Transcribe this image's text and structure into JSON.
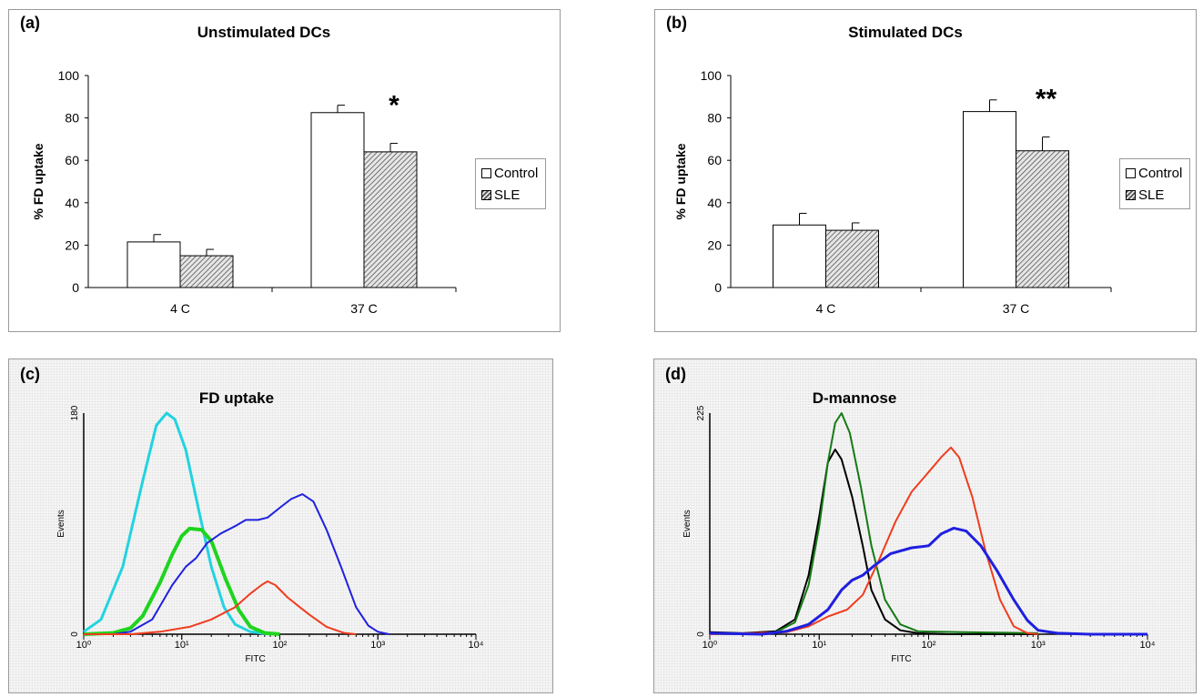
{
  "panels": {
    "a": {
      "letter": "(a)",
      "title": "Unstimulated DCs"
    },
    "b": {
      "letter": "(b)",
      "title": "Stimulated DCs"
    },
    "c": {
      "letter": "(c)",
      "title": "FD uptake"
    },
    "d": {
      "letter": "(d)",
      "title": "D-mannose"
    }
  },
  "legend": {
    "control": "Control",
    "sle": "SLE"
  },
  "chart_data": [
    {
      "type": "bar",
      "title": "Unstimulated DCs",
      "ylabel": "% FD uptake",
      "xlabel": "",
      "categories": [
        "4 C",
        "37 C"
      ],
      "series": [
        {
          "name": "Control",
          "values": [
            21.5,
            82.5
          ],
          "errors": [
            3.5,
            3.5
          ]
        },
        {
          "name": "SLE",
          "values": [
            15,
            64
          ],
          "errors": [
            3,
            4
          ]
        }
      ],
      "ylim": [
        0,
        100
      ],
      "yticks": [
        0,
        20,
        40,
        60,
        80,
        100
      ],
      "annotations": [
        {
          "category": "37 C",
          "text": "*"
        }
      ],
      "colors": {
        "control": "#ffffff",
        "sle_hatch": "#555555"
      },
      "legend_position": "right"
    },
    {
      "type": "bar",
      "title": "Stimulated DCs",
      "ylabel": "% FD uptake",
      "xlabel": "",
      "categories": [
        "4 C",
        "37 C"
      ],
      "series": [
        {
          "name": "Control",
          "values": [
            29.5,
            83
          ],
          "errors": [
            5.5,
            5.5
          ]
        },
        {
          "name": "SLE",
          "values": [
            27,
            64.5
          ],
          "errors": [
            3.5,
            6.5
          ]
        }
      ],
      "ylim": [
        0,
        100
      ],
      "yticks": [
        0,
        20,
        40,
        60,
        80,
        100
      ],
      "annotations": [
        {
          "category": "37 C",
          "text": "**"
        }
      ],
      "colors": {
        "control": "#ffffff",
        "sle_hatch": "#555555"
      },
      "legend_position": "right"
    },
    {
      "type": "line",
      "title": "FD uptake",
      "xlabel": "FITC",
      "ylabel": "Events",
      "xscale": "log",
      "xlim": [
        1,
        10000
      ],
      "ylim": [
        0,
        180
      ],
      "xticks": [
        "10⁰",
        "10¹",
        "10²",
        "10³",
        "10⁴"
      ],
      "yticks": [
        "0",
        "180"
      ],
      "series": [
        {
          "color": "#22d3e0",
          "width": 3,
          "points": [
            [
              1,
              2
            ],
            [
              1.5,
              12
            ],
            [
              2.5,
              55
            ],
            [
              4,
              125
            ],
            [
              5.5,
              170
            ],
            [
              7,
              180
            ],
            [
              8.5,
              175
            ],
            [
              11,
              150
            ],
            [
              15,
              100
            ],
            [
              20,
              55
            ],
            [
              27,
              22
            ],
            [
              35,
              8
            ],
            [
              50,
              2
            ],
            [
              80,
              0
            ]
          ]
        },
        {
          "color": "#1fd41f",
          "width": 4,
          "points": [
            [
              1,
              0
            ],
            [
              2,
              1
            ],
            [
              3,
              5
            ],
            [
              4,
              15
            ],
            [
              6,
              42
            ],
            [
              8,
              65
            ],
            [
              10,
              80
            ],
            [
              12,
              86
            ],
            [
              16,
              85
            ],
            [
              20,
              76
            ],
            [
              28,
              45
            ],
            [
              38,
              20
            ],
            [
              50,
              6
            ],
            [
              70,
              1
            ],
            [
              100,
              0
            ]
          ]
        },
        {
          "color": "#2020e0",
          "width": 2,
          "points": [
            [
              1,
              0
            ],
            [
              2,
              0
            ],
            [
              3,
              2
            ],
            [
              5,
              12
            ],
            [
              8,
              40
            ],
            [
              11,
              55
            ],
            [
              14,
              62
            ],
            [
              18,
              74
            ],
            [
              25,
              82
            ],
            [
              35,
              88
            ],
            [
              45,
              93
            ],
            [
              60,
              93
            ],
            [
              75,
              95
            ],
            [
              100,
              103
            ],
            [
              130,
              110
            ],
            [
              170,
              114
            ],
            [
              220,
              108
            ],
            [
              300,
              85
            ],
            [
              420,
              55
            ],
            [
              600,
              22
            ],
            [
              800,
              7
            ],
            [
              1000,
              2
            ],
            [
              1300,
              0
            ]
          ]
        },
        {
          "color": "#f03c1e",
          "width": 2,
          "points": [
            [
              1,
              0
            ],
            [
              3,
              0
            ],
            [
              6,
              2
            ],
            [
              12,
              6
            ],
            [
              20,
              12
            ],
            [
              35,
              22
            ],
            [
              50,
              33
            ],
            [
              65,
              40
            ],
            [
              75,
              43
            ],
            [
              90,
              40
            ],
            [
              120,
              30
            ],
            [
              160,
              22
            ],
            [
              200,
              16
            ],
            [
              300,
              6
            ],
            [
              450,
              1
            ],
            [
              600,
              0
            ]
          ]
        }
      ]
    },
    {
      "type": "line",
      "title": "D-mannose",
      "xlabel": "FITC",
      "ylabel": "Events",
      "xscale": "log",
      "xlim": [
        1,
        10000
      ],
      "ylim": [
        0,
        225
      ],
      "xticks": [
        "10⁰",
        "10¹",
        "10²",
        "10³",
        "10⁴"
      ],
      "yticks": [
        "0",
        "225"
      ],
      "series": [
        {
          "color": "#000000",
          "width": 2,
          "points": [
            [
              1,
              2
            ],
            [
              2,
              1
            ],
            [
              4,
              3
            ],
            [
              6,
              15
            ],
            [
              8,
              60
            ],
            [
              10,
              120
            ],
            [
              12,
              175
            ],
            [
              14,
              188
            ],
            [
              16,
              178
            ],
            [
              20,
              140
            ],
            [
              25,
              90
            ],
            [
              30,
              45
            ],
            [
              40,
              15
            ],
            [
              55,
              4
            ],
            [
              80,
              1
            ],
            [
              150,
              0
            ],
            [
              1000,
              0
            ]
          ]
        },
        {
          "color": "#157a15",
          "width": 2,
          "points": [
            [
              1,
              1
            ],
            [
              2,
              0
            ],
            [
              4,
              2
            ],
            [
              6,
              12
            ],
            [
              8,
              50
            ],
            [
              10,
              110
            ],
            [
              12,
              175
            ],
            [
              14,
              215
            ],
            [
              16,
              225
            ],
            [
              19,
              205
            ],
            [
              24,
              150
            ],
            [
              30,
              90
            ],
            [
              40,
              35
            ],
            [
              55,
              10
            ],
            [
              80,
              3
            ],
            [
              200,
              2
            ],
            [
              1000,
              1
            ]
          ]
        },
        {
          "color": "#f03c1e",
          "width": 2,
          "points": [
            [
              1,
              0
            ],
            [
              5,
              2
            ],
            [
              8,
              8
            ],
            [
              12,
              18
            ],
            [
              18,
              25
            ],
            [
              25,
              40
            ],
            [
              35,
              75
            ],
            [
              50,
              115
            ],
            [
              70,
              145
            ],
            [
              100,
              165
            ],
            [
              130,
              180
            ],
            [
              160,
              190
            ],
            [
              190,
              180
            ],
            [
              250,
              140
            ],
            [
              330,
              85
            ],
            [
              450,
              35
            ],
            [
              600,
              8
            ],
            [
              800,
              1
            ],
            [
              1000,
              0
            ]
          ]
        },
        {
          "color": "#1f1fe0",
          "width": 3,
          "points": [
            [
              1,
              1
            ],
            [
              3,
              0
            ],
            [
              5,
              3
            ],
            [
              8,
              10
            ],
            [
              12,
              25
            ],
            [
              16,
              45
            ],
            [
              20,
              55
            ],
            [
              25,
              60
            ],
            [
              32,
              70
            ],
            [
              45,
              82
            ],
            [
              70,
              88
            ],
            [
              100,
              90
            ],
            [
              130,
              102
            ],
            [
              170,
              108
            ],
            [
              220,
              105
            ],
            [
              300,
              90
            ],
            [
              420,
              65
            ],
            [
              600,
              35
            ],
            [
              800,
              14
            ],
            [
              1000,
              4
            ],
            [
              1500,
              1
            ],
            [
              3000,
              0
            ],
            [
              10000,
              0
            ]
          ]
        }
      ]
    }
  ]
}
